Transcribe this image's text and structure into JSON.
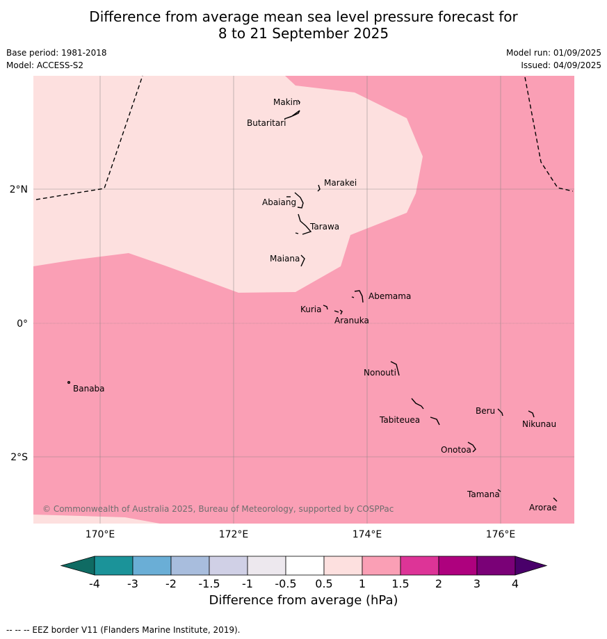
{
  "title": {
    "line1": "Difference from average mean sea level pressure forecast for",
    "line2": "8 to 21 September 2025"
  },
  "meta": {
    "base_period": "Base period: 1981-2018",
    "model": "Model: ACCESS-S2",
    "model_run": "Model run: 01/09/2025",
    "issued": "Issued: 04/09/2025"
  },
  "map": {
    "region": "Kiribati - Gilbert Islands",
    "colors": {
      "range_0_5_to_1": "#fde0df",
      "range_1_to_1_5": "#fa9fb5",
      "eez_border": "#000000",
      "gridline": "#808080"
    },
    "lon_ticks": [
      "170°E",
      "172°E",
      "174°E",
      "176°E"
    ],
    "lat_ticks": [
      "2°N",
      "0°",
      "2°S"
    ],
    "places": [
      "Makin",
      "Butaritari",
      "Marakei",
      "Abaiang",
      "Tarawa",
      "Maiana",
      "Abemama",
      "Kuria",
      "Aranuka",
      "Nonouti",
      "Banaba",
      "Beru",
      "Tabiteuea",
      "Nikunau",
      "Onotoa",
      "Tamana",
      "Arorae"
    ],
    "copyright": "© Commonwealth of Australia 2025, Bureau of Meteorology, supported by COSPPac"
  },
  "colorbar": {
    "labels": [
      "-4",
      "-3",
      "-2",
      "-1.5",
      "-1",
      "-0.5",
      "0.5",
      "1",
      "1.5",
      "2",
      "3",
      "4"
    ],
    "colors": [
      "#1b9399",
      "#6aaed6",
      "#a8bddd",
      "#d0d0e6",
      "#ede8ee",
      "#ffffff",
      "#fde0df",
      "#fa9fb5",
      "#dd3497",
      "#ae017e",
      "#7a0177"
    ],
    "under_color": "#0f6b63",
    "over_color": "#49006a",
    "label": "Difference from average (hPa)"
  },
  "footnote": "--  --  -- EEZ border V11 (Flanders Marine Institute, 2019)."
}
